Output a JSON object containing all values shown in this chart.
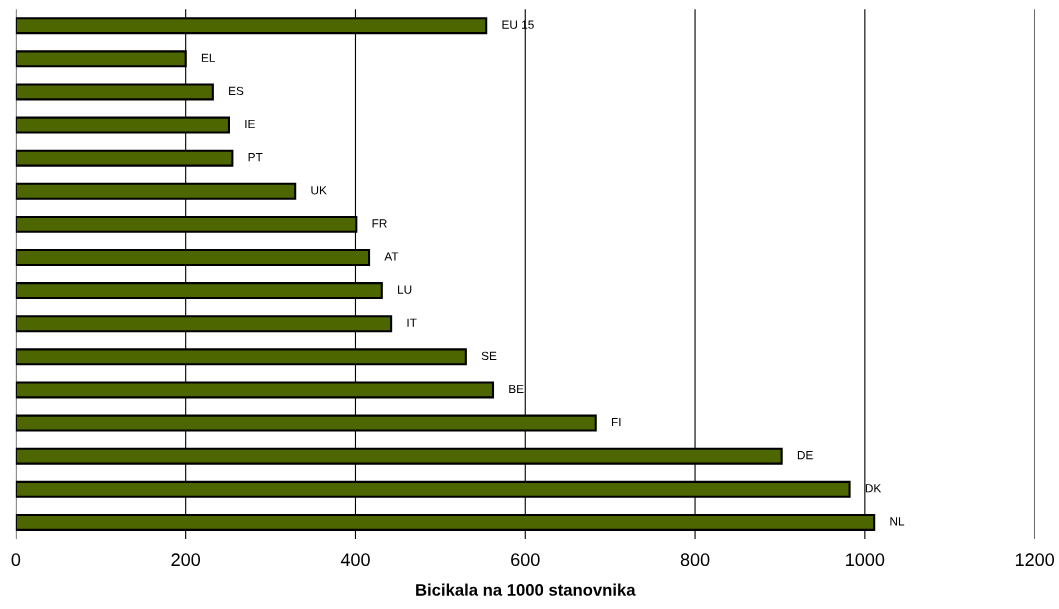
{
  "chart_data": {
    "type": "bar",
    "orientation": "horizontal",
    "xlabel": "Bicikala na 1000 stanovnika",
    "categories": [
      "EU 15",
      "EL",
      "ES",
      "IE",
      "PT",
      "UK",
      "FR",
      "AT",
      "LU",
      "IT",
      "SE",
      "BE",
      "FI",
      "DE",
      "DK",
      "NL"
    ],
    "values": [
      554,
      200,
      232,
      251,
      255,
      329,
      401,
      416,
      431,
      442,
      530,
      562,
      683,
      902,
      982,
      1011
    ],
    "color": "#4d6600",
    "xlim": [
      0,
      1200
    ],
    "xticks": [
      0,
      200,
      400,
      600,
      800,
      1000,
      1200
    ],
    "grid": "x",
    "tick_labels": "x"
  }
}
